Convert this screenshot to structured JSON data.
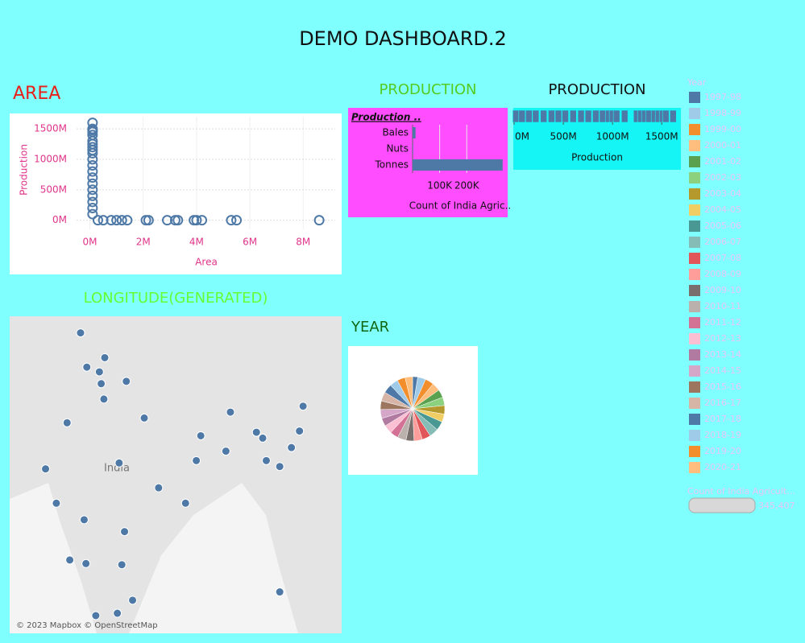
{
  "title": "DEMO DASHBOARD.2",
  "chart_data": [
    {
      "type": "scatter",
      "title": "AREA",
      "x_label": "Area",
      "y_label": "Production",
      "color": "#4e79a7",
      "x": [
        100000,
        100000,
        100000,
        100000,
        100000,
        100000,
        100000,
        100000,
        100000,
        100000,
        100000,
        100000,
        100000,
        100000,
        100000,
        100000,
        100000,
        100000,
        100000,
        100000,
        300000,
        500000,
        800000,
        1000000,
        1200000,
        1400000,
        2100000,
        2200000,
        2900000,
        3200000,
        3300000,
        3900000,
        4000000,
        4200000,
        5300000,
        5500000,
        8600000
      ],
      "values": [
        1600000000,
        1500000000,
        1480000000,
        1450000000,
        1400000000,
        1300000000,
        1250000000,
        1200000000,
        1150000000,
        1100000000,
        1000000000,
        900000000,
        800000000,
        700000000,
        600000000,
        500000000,
        400000000,
        300000000,
        200000000,
        100000000,
        0,
        0,
        0,
        0,
        0,
        0,
        0,
        0,
        0,
        0,
        0,
        0,
        0,
        0,
        0,
        0,
        0
      ],
      "xlim": [
        -500000,
        9200000
      ],
      "ylim": [
        -150000000,
        1700000000
      ],
      "xticks": [
        {
          "value": 0,
          "label": "0M"
        },
        {
          "value": 2000000,
          "label": "2M"
        },
        {
          "value": 4000000,
          "label": "4M"
        },
        {
          "value": 6000000,
          "label": "6M"
        },
        {
          "value": 8000000,
          "label": "8M"
        }
      ],
      "yticks": [
        {
          "value": 0,
          "label": "0M"
        },
        {
          "value": 500000000,
          "label": "500M"
        },
        {
          "value": 1000000000,
          "label": "1000M"
        },
        {
          "value": 1500000000,
          "label": "1500M"
        }
      ],
      "grid": true
    },
    {
      "type": "hbar",
      "title": "PRODUCTION",
      "row_header": "Production ..",
      "x_label": "Count of India Agric..",
      "color": "#4e79a7",
      "categories": [
        "Bales",
        "Nuts",
        "Tonnes"
      ],
      "values": [
        11000,
        2000,
        332407
      ],
      "xlim": [
        0,
        345000
      ],
      "xticks": [
        {
          "value": 100000,
          "label": "100K"
        },
        {
          "value": 200000,
          "label": "200K"
        }
      ],
      "grid": true
    },
    {
      "type": "strip",
      "title": "PRODUCTION",
      "x_label": "Production",
      "color": "#4e79a7",
      "values": [
        20000000,
        80000000,
        150000000,
        220000000,
        300000000,
        380000000,
        450000000,
        520000000,
        600000000,
        680000000,
        754000000,
        830000000,
        900000000,
        960000000,
        1000000000,
        1041000000,
        1123000000,
        1246000000,
        1287000000,
        1328000000,
        1369000000,
        1426000000,
        1467000000,
        1508000000,
        1541000000,
        1615000000
      ],
      "xlim": [
        0,
        1670000000
      ],
      "xticks": [
        {
          "value": 0,
          "label": "0M"
        },
        {
          "value": 500000000,
          "label": "500M"
        },
        {
          "value": 1000000000,
          "label": "1000M"
        },
        {
          "value": 1500000000,
          "label": "1500M"
        }
      ]
    },
    {
      "type": "pie",
      "title": "YEAR",
      "legend_title": "Year",
      "categories": [
        "1997-98",
        "1998-99",
        "1999-00",
        "2000-01",
        "2001-02",
        "2002-03",
        "2003-04",
        "2004-05",
        "2005-06",
        "2006-07",
        "2007-08",
        "2008-09",
        "2009-10",
        "2010-11",
        "2011-12",
        "2012-13",
        "2013-14",
        "2014-15",
        "2015-16",
        "2016-17",
        "2017-18",
        "2018-19",
        "2019-20",
        "2020-21"
      ],
      "values": [
        9000,
        14000,
        15000,
        14500,
        14000,
        14500,
        15000,
        14000,
        15500,
        16000,
        15000,
        14500,
        14000,
        15000,
        14500,
        15000,
        14000,
        15500,
        15000,
        16000,
        15500,
        14500,
        14000,
        13000
      ],
      "colors": [
        "#4e79a7",
        "#a0cbe8",
        "#f28e2b",
        "#ffbe7d",
        "#59a14f",
        "#8cd17d",
        "#b6992d",
        "#f1ce63",
        "#499894",
        "#86bcb6",
        "#e15759",
        "#ff9d9a",
        "#79706e",
        "#bab0ac",
        "#d37295",
        "#fabfd2",
        "#b07aa1",
        "#d4a6c8",
        "#9d7660",
        "#d7b5a6",
        "#4e79a7",
        "#a0cbe8",
        "#f28e2b",
        "#ffbe7d"
      ]
    },
    {
      "type": "map",
      "title": "LONGITUDE(GENERATED)",
      "place_label": "India",
      "attribution": "© 2023 Mapbox © OpenStreetMap",
      "color": "#4e79a7",
      "x": [
        75.4,
        78.1,
        76.1,
        77.5,
        80.5,
        77.7,
        78.0,
        73.9,
        82.5,
        92.1,
        100.2,
        95.0,
        95.7,
        88.8,
        98.9,
        99.8,
        91.6,
        88.3,
        79.7,
        96.1,
        97.6,
        71.5,
        84.1,
        72.7,
        87.1,
        75.8,
        80.3,
        74.2,
        76.0,
        80.0,
        97.6,
        81.2,
        79.5,
        77.1
      ],
      "values": [
        33.4,
        31.3,
        30.5,
        30.1,
        29.3,
        29.1,
        27.8,
        25.8,
        26.2,
        26.7,
        27.2,
        25.0,
        24.5,
        24.7,
        23.7,
        25.1,
        23.4,
        22.6,
        22.4,
        22.6,
        22.1,
        21.9,
        20.3,
        19.0,
        19.0,
        17.6,
        16.6,
        14.2,
        13.9,
        13.8,
        11.5,
        10.8,
        9.7,
        9.5
      ],
      "xlim": [
        67.5,
        104.5
      ],
      "ylim": [
        8.0,
        34.8
      ]
    }
  ],
  "size_legend": {
    "title": "Count of India Agricult...",
    "max": {
      "value": 345407,
      "label": "345,407"
    }
  }
}
